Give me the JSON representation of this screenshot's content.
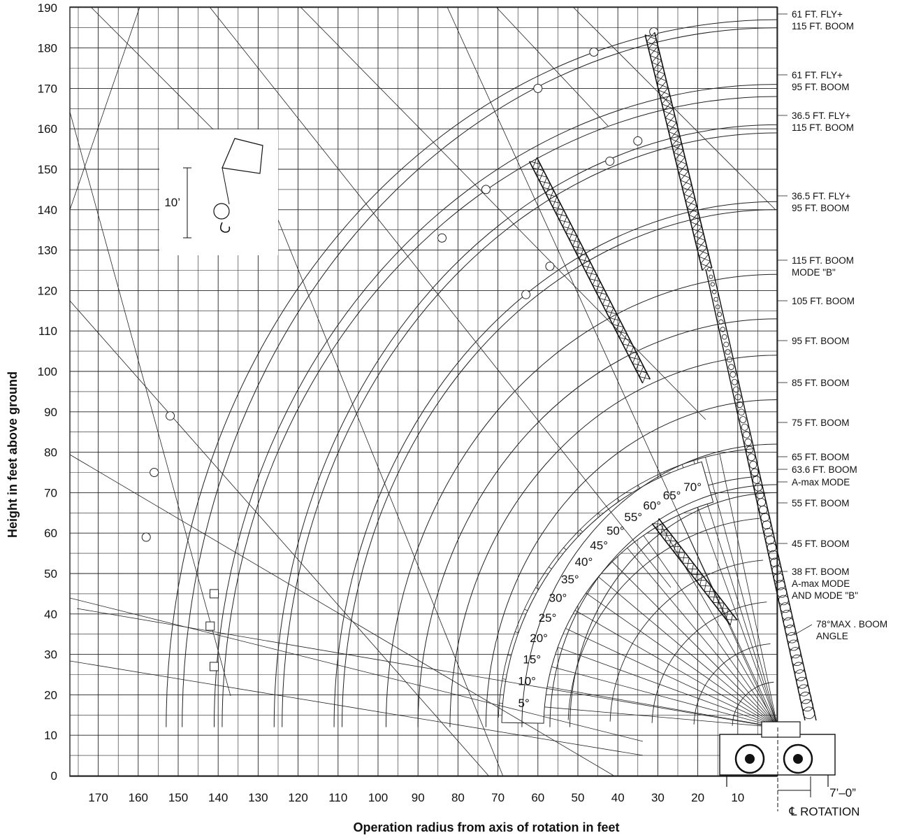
{
  "chart_data": {
    "type": "diagram",
    "title": "",
    "xlabel": "Operation radius from axis of rotation in feet",
    "ylabel": "Height in feet above ground",
    "x_ticks": [
      170,
      160,
      150,
      140,
      130,
      120,
      110,
      100,
      90,
      80,
      70,
      60,
      50,
      40,
      30,
      20,
      10
    ],
    "y_ticks": [
      0,
      10,
      20,
      30,
      40,
      50,
      60,
      70,
      80,
      90,
      100,
      110,
      120,
      130,
      140,
      150,
      160,
      170,
      180,
      190
    ],
    "xlim": [
      0,
      178
    ],
    "ylim": [
      0,
      190
    ],
    "grid": true,
    "rotation_label": "℄ ROTATION",
    "offset_label": "7’–0”",
    "hook_block_label": "10’",
    "boom_angles": [
      5,
      10,
      15,
      20,
      25,
      30,
      35,
      40,
      45,
      50,
      55,
      60,
      65,
      70
    ],
    "boom_angle_labels": [
      "5°",
      "10°",
      "15°",
      "20°",
      "25°",
      "30°",
      "35°",
      "40°",
      "45°",
      "50°",
      "55°",
      "60°",
      "65°",
      "70°"
    ],
    "max_boom_angle_label": [
      "78°MAX . BOOM",
      "ANGLE"
    ],
    "boom_curves": [
      {
        "lines": [
          "61 FT. FLY+",
          "115 FT. BOOM"
        ],
        "tip_height": 187
      },
      {
        "lines": [
          "61 FT. FLY+",
          "95 FT. BOOM"
        ],
        "tip_height": 170
      },
      {
        "lines": [
          "36.5 FT. FLY+",
          "115 FT. BOOM"
        ],
        "tip_height": 160
      },
      {
        "lines": [
          "36.5 FT. FLY+",
          "95 FT. BOOM"
        ],
        "tip_height": 141
      },
      {
        "lines": [
          "115 FT. BOOM",
          "MODE \"B\""
        ],
        "tip_height": 125
      },
      {
        "lines": [
          "105 FT. BOOM"
        ],
        "tip_height": 113
      },
      {
        "lines": [
          "95 FT. BOOM"
        ],
        "tip_height": 103
      },
      {
        "lines": [
          "85 FT. BOOM"
        ],
        "tip_height": 93
      },
      {
        "lines": [
          "75 FT. BOOM"
        ],
        "tip_height": 82
      },
      {
        "lines": [
          "65 FT. BOOM"
        ],
        "tip_height": 72
      },
      {
        "lines": [
          "63.6 FT. BOOM"
        ],
        "tip_height": 70
      },
      {
        "lines": [
          "A-max MODE"
        ],
        "tip_height": 68
      },
      {
        "lines": [
          "55 FT. BOOM"
        ],
        "tip_height": 62
      },
      {
        "lines": [
          "45 FT. BOOM"
        ],
        "tip_height": 52
      },
      {
        "lines": [
          "38 FT. BOOM",
          "A-max MODE",
          "AND MODE \"B\""
        ],
        "tip_height": 45
      }
    ]
  }
}
